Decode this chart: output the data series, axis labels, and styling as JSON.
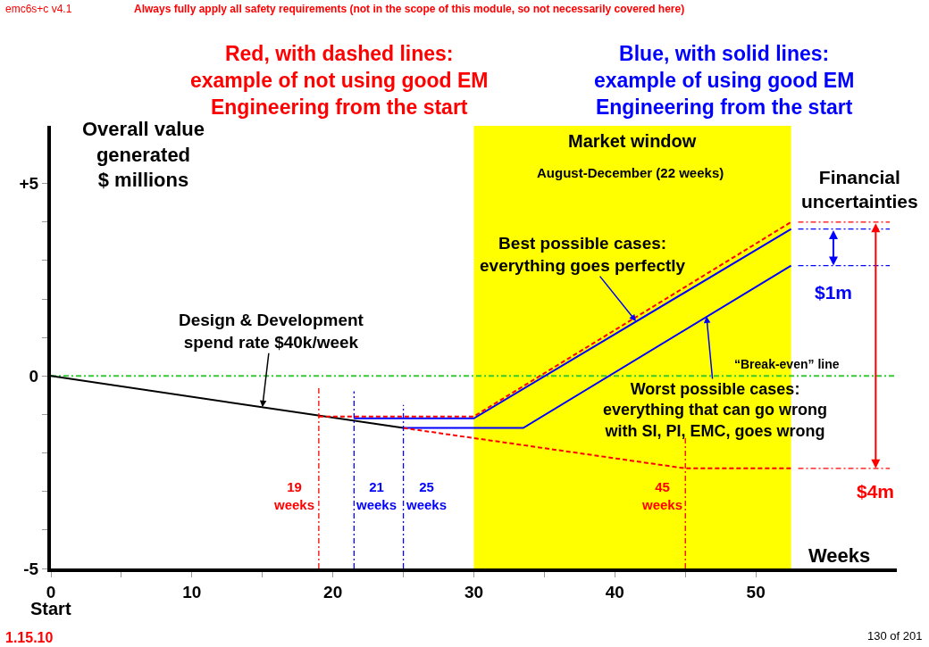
{
  "chart_data": {
    "type": "line",
    "xlabel": "Weeks",
    "ylabel": "Overall value\ngenerated\n$ millions",
    "xlim": [
      0,
      60
    ],
    "ylim": [
      -5,
      6.5
    ],
    "xticks": [
      0,
      {
        "value": 5,
        "label": null
      },
      10,
      {
        "value": 15,
        "label": null
      },
      20,
      {
        "value": 25,
        "label": null
      },
      30,
      {
        "value": 35,
        "label": null
      },
      40,
      {
        "value": 45,
        "label": null
      },
      50
    ],
    "yticks": [
      -5,
      {
        "value": -4,
        "label": null
      },
      {
        "value": -3,
        "label": null
      },
      {
        "value": -2,
        "label": null
      },
      {
        "value": -1,
        "label": null
      },
      0,
      {
        "value": 1,
        "label": null
      },
      {
        "value": 2,
        "label": null
      },
      {
        "value": 3,
        "label": null
      },
      {
        "value": 4,
        "label": null
      },
      {
        "value": 5,
        "label": "+5"
      }
    ],
    "grid": false,
    "marker": "none",
    "series": [
      {
        "color": "#000000",
        "x": [
          0,
          25
        ],
        "values": [
          0,
          -1.35
        ],
        "line_style": "solid"
      },
      {
        "color": "#0000ff",
        "x": [
          21.5,
          30,
          52.5
        ],
        "values": [
          -1.1,
          -1.1,
          3.82
        ],
        "line_style": "solid"
      },
      {
        "color": "#0000ff",
        "x": [
          25,
          33.5,
          52.5
        ],
        "values": [
          -1.35,
          -1.35,
          2.87
        ],
        "line_style": "solid"
      },
      {
        "color": "#ff0000",
        "x": [
          19,
          30,
          52.5
        ],
        "values": [
          -1.05,
          -1.05,
          4.0
        ],
        "line_style": "dashed"
      },
      {
        "color": "#ff0000",
        "x": [
          25,
          45,
          52.5
        ],
        "values": [
          -1.35,
          -2.4,
          -2.4
        ],
        "line_style": "dashed"
      },
      {
        "color": "#ff0000",
        "x": [
          19,
          19
        ],
        "values": [
          -5,
          -0.25
        ],
        "line_style": "dashdot"
      },
      {
        "color": "#0000ff",
        "x": [
          21.5,
          21.5
        ],
        "values": [
          -5,
          -0.4
        ],
        "line_style": "dashdot"
      },
      {
        "color": "#0000ff",
        "x": [
          25,
          25
        ],
        "values": [
          -5,
          -0.75
        ],
        "line_style": "dashdot"
      },
      {
        "color": "#ff0000",
        "x": [
          45,
          45
        ],
        "values": [
          -5,
          -1.6
        ],
        "line_style": "dashdot"
      },
      {
        "color": "#ff0000",
        "x": [
          53,
          59.5
        ],
        "values": [
          4.0,
          4.0
        ],
        "line_style": "dashdot"
      },
      {
        "color": "#0000ff",
        "x": [
          53,
          59.5
        ],
        "values": [
          3.82,
          3.82
        ],
        "line_style": "dashdot"
      },
      {
        "color": "#0000ff",
        "x": [
          53,
          59.5
        ],
        "values": [
          2.87,
          2.87
        ],
        "line_style": "dashdot"
      },
      {
        "color": "#ff0000",
        "x": [
          53,
          59.5
        ],
        "values": [
          -2.4,
          -2.4
        ],
        "line_style": "dashdot"
      }
    ],
    "ref_lines": [
      {
        "axis": "y",
        "value": 0,
        "label": "“Break-even” line",
        "color": "#33cc33",
        "line_style": "dashdot"
      }
    ],
    "bands": [
      {
        "axis": "x",
        "from": 30,
        "to": 52.5,
        "label": "Market window",
        "color": "#ffff00"
      }
    ],
    "annotations": [
      "emc6s+c v4.1",
      "Always fully apply all safety requirements (not in the scope of this module, so not necessarily covered here)",
      "Red, with dashed lines:\nexample of not using good EM\nEngineering from the start",
      "Blue, with solid lines:\nexample of using good EM\nEngineering from the start",
      "August-December (22 weeks)",
      "Financial\nuncertainties",
      "1.15.10",
      "130 of 201",
      "Start",
      {
        "text": "Design & Development\nspend rate $40k/week",
        "x": 15,
        "y": -0.81
      },
      {
        "text": "Best possible cases:\neverything goes perfectly",
        "x": 41.5,
        "y": 1.42
      },
      {
        "text": "Worst possible cases:\neverything that can go wrong\nwith SI, PI, EMC, goes wrong",
        "x": 46.5,
        "y": 1.55
      },
      {
        "text": "19\nweeks",
        "x": 19,
        "y": -3.1
      },
      {
        "text": "21\nweeks",
        "x": 21.5,
        "y": -3.1
      },
      {
        "text": "25\nweeks",
        "x": 25,
        "y": -3.1
      },
      {
        "text": "45\nweeks",
        "x": 45,
        "y": -3.1
      },
      {
        "text": "$1m",
        "x": 55.5,
        "y": 2.87
      },
      {
        "text": "$4m",
        "x": 58.5,
        "y": -2.4
      }
    ]
  }
}
